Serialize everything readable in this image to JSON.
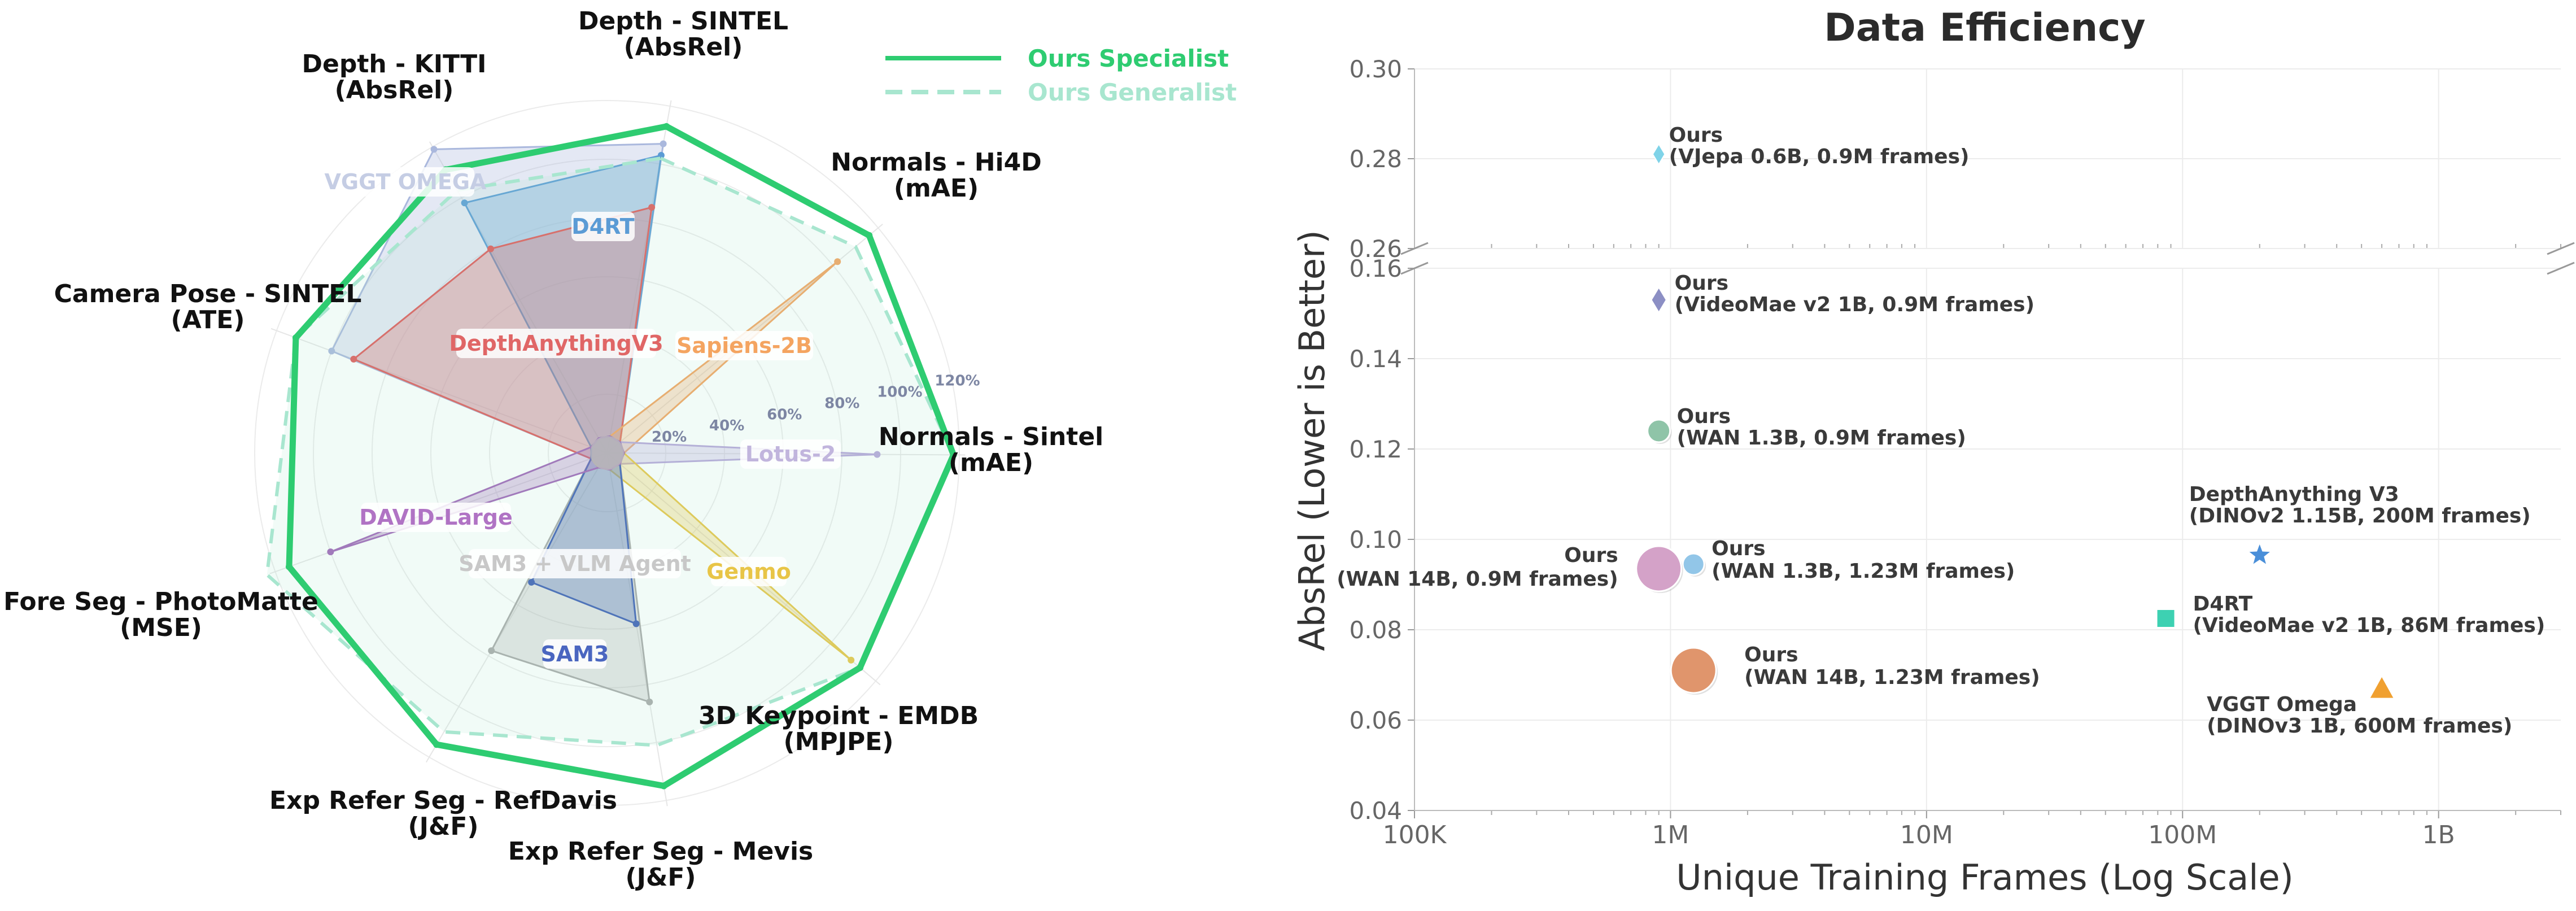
{
  "radar": {
    "axes": [
      {
        "name": "Depth - SINTEL",
        "metric": "(AbsRel)"
      },
      {
        "name": "Normals - Hi4D",
        "metric": "(mAE)"
      },
      {
        "name": "Normals - Sintel",
        "metric": "(mAE)"
      },
      {
        "name": "3D Keypoint - EMDB",
        "metric": "(MPJPE)"
      },
      {
        "name": "Exp Refer Seg - Mevis",
        "metric": "(J&F)"
      },
      {
        "name": "Exp Refer Seg - RefDavis",
        "metric": "(J&F)"
      },
      {
        "name": "Fore Seg - PhotoMatte",
        "metric": "(MSE)"
      },
      {
        "name": "Camera Pose - SINTEL",
        "metric": "(ATE)"
      },
      {
        "name": "Depth - KITTI",
        "metric": "(AbsRel)"
      }
    ],
    "ring_labels": [
      "20%",
      "40%",
      "60%",
      "80%",
      "100%",
      "120%"
    ],
    "ring_values": [
      20,
      40,
      60,
      80,
      100,
      120
    ],
    "legend": [
      {
        "label": "Ours Specialist",
        "color": "#2ecc71",
        "dashed": false
      },
      {
        "label": "Ours Generalist",
        "color": "#a8e6cf",
        "dashed": true
      }
    ],
    "ours_specialist": [
      113,
      116,
      118,
      113,
      115,
      115,
      115,
      113,
      111
    ],
    "ours_generalist": [
      102,
      110,
      118,
      113,
      101,
      110,
      123,
      113,
      103
    ],
    "baselines": [
      {
        "name": "VGGT OMEGA",
        "color": "#aab8dd",
        "label_color": "#c5cde4",
        "values": [
          107,
          0,
          0,
          0,
          0,
          0,
          0,
          100,
          119
        ]
      },
      {
        "name": "D4RT",
        "color": "#5b9bd5",
        "label_color": "#5b9bd5",
        "values": [
          103,
          0,
          0,
          0,
          0,
          0,
          0,
          0,
          98
        ]
      },
      {
        "name": "DepthAnythingV3",
        "color": "#e05a5a",
        "label_color": "#e06666",
        "values": [
          85,
          0,
          0,
          0,
          0,
          0,
          0,
          92,
          80
        ]
      },
      {
        "name": "Sapiens-2B",
        "color": "#f4a460",
        "label_color": "#f4a460",
        "values": [
          0,
          102,
          0,
          0,
          0,
          0,
          0,
          0,
          0
        ]
      },
      {
        "name": "Lotus-2",
        "color": "#b7a6d9",
        "label_color": "#c1b5dd",
        "values": [
          0,
          0,
          92,
          0,
          0,
          0,
          0,
          0,
          0
        ]
      },
      {
        "name": "Genmo",
        "color": "#e8c547",
        "label_color": "#e8c547",
        "values": [
          0,
          0,
          0,
          109,
          0,
          0,
          0,
          0,
          0
        ]
      },
      {
        "name": "SAM3 + VLM Agent",
        "color": "#aaaaaa",
        "label_color": "#c8c8c8",
        "values": [
          0,
          0,
          0,
          0,
          86,
          78,
          0,
          0,
          0
        ]
      },
      {
        "name": "SAM3",
        "color": "#3f5fb5",
        "label_color": "#4a66c0",
        "values": [
          0,
          0,
          0,
          0,
          59,
          51,
          0,
          0,
          0
        ]
      },
      {
        "name": "DAVID-Large",
        "color": "#a066b8",
        "label_color": "#b073c4",
        "values": [
          0,
          0,
          0,
          0,
          0,
          0,
          100,
          0,
          0
        ]
      }
    ]
  },
  "chart_data": {
    "type": "scatter",
    "title": "Data Efficiency",
    "xlabel": "Unique Training Frames (Log Scale)",
    "ylabel": "AbsRel (Lower is Better)",
    "xscale": "log",
    "xlim": [
      100000,
      3000000000
    ],
    "xticks": [
      {
        "value": 100000,
        "label": "100K"
      },
      {
        "value": 1000000,
        "label": "1M"
      },
      {
        "value": 10000000,
        "label": "10M"
      },
      {
        "value": 100000000,
        "label": "100M"
      },
      {
        "value": 1000000000,
        "label": "1B"
      }
    ],
    "ylim_upper": [
      0.26,
      0.3
    ],
    "ylim_lower": [
      0.04,
      0.16
    ],
    "yticks_upper": [
      "0.30",
      "0.28",
      "0.26"
    ],
    "yticks_lower": [
      "0.16",
      "0.14",
      "0.12",
      "0.10",
      "0.08",
      "0.06",
      "0.04"
    ],
    "grid": true,
    "broken_axis": true,
    "points": [
      {
        "label1": "Ours",
        "label2": "(VJepa 0.6B, 0.9M frames)",
        "x": 900000,
        "y": 0.281,
        "marker": "diamond",
        "size": 18,
        "color": "#7fd3e8",
        "anchor": "start",
        "dx": 18,
        "dy1": -22,
        "dy2": 16
      },
      {
        "label1": "Ours",
        "label2": "(VideoMae v2 1B, 0.9M frames)",
        "x": 900000,
        "y": 0.153,
        "marker": "diamond",
        "size": 22,
        "color": "#8c8fc4",
        "anchor": "start",
        "dx": 28,
        "dy1": -18,
        "dy2": 20
      },
      {
        "label1": "Ours",
        "label2": "(WAN 1.3B, 0.9M frames)",
        "x": 900000,
        "y": 0.124,
        "marker": "circle",
        "size": 20,
        "color": "#8fc4a8",
        "anchor": "start",
        "dx": 32,
        "dy1": -14,
        "dy2": 24
      },
      {
        "label1": "Ours",
        "label2": "(WAN 1.3B, 1.23M frames)",
        "x": 1230000,
        "y": 0.0945,
        "marker": "circle",
        "size": 19,
        "color": "#92c6e8",
        "anchor": "start",
        "dx": 32,
        "dy1": -16,
        "dy2": 24
      },
      {
        "label1": "Ours",
        "label2": "(WAN 14B, 0.9M frames)",
        "x": 900000,
        "y": 0.0935,
        "marker": "circle",
        "size": 40,
        "color": "#d4a2c8",
        "anchor": "end",
        "dx": -72,
        "dy1": -12,
        "dy2": 30
      },
      {
        "label1": "Ours",
        "label2": "(WAN 14B, 1.23M frames)",
        "x": 1230000,
        "y": 0.071,
        "marker": "circle",
        "size": 40,
        "color": "#e0956c",
        "anchor": "start",
        "dx": 90,
        "dy1": -16,
        "dy2": 24
      },
      {
        "label1": "DepthAnything V3",
        "label2": "(DINOv2 1.15B, 200M frames)",
        "x": 200000000,
        "y": 0.0965,
        "marker": "star",
        "size": 22,
        "color": "#4a8fd9",
        "anchor": "start",
        "dx": -125,
        "dy1": -96,
        "dy2": -58
      },
      {
        "label1": "D4RT",
        "label2": "(VideoMae v2 1B, 86M frames)",
        "x": 86000000,
        "y": 0.0825,
        "marker": "square",
        "size": 16,
        "color": "#3dd1b2",
        "anchor": "start",
        "dx": 48,
        "dy1": -14,
        "dy2": 24
      },
      {
        "label1": "VGGT Omega",
        "label2": "(DINOv3 1B, 600M frames)",
        "x": 600000000,
        "y": 0.067,
        "marker": "triangle",
        "size": 22,
        "color": "#f0a030",
        "anchor": "start",
        "dx": -310,
        "dy1": 40,
        "dy2": 78
      }
    ]
  }
}
